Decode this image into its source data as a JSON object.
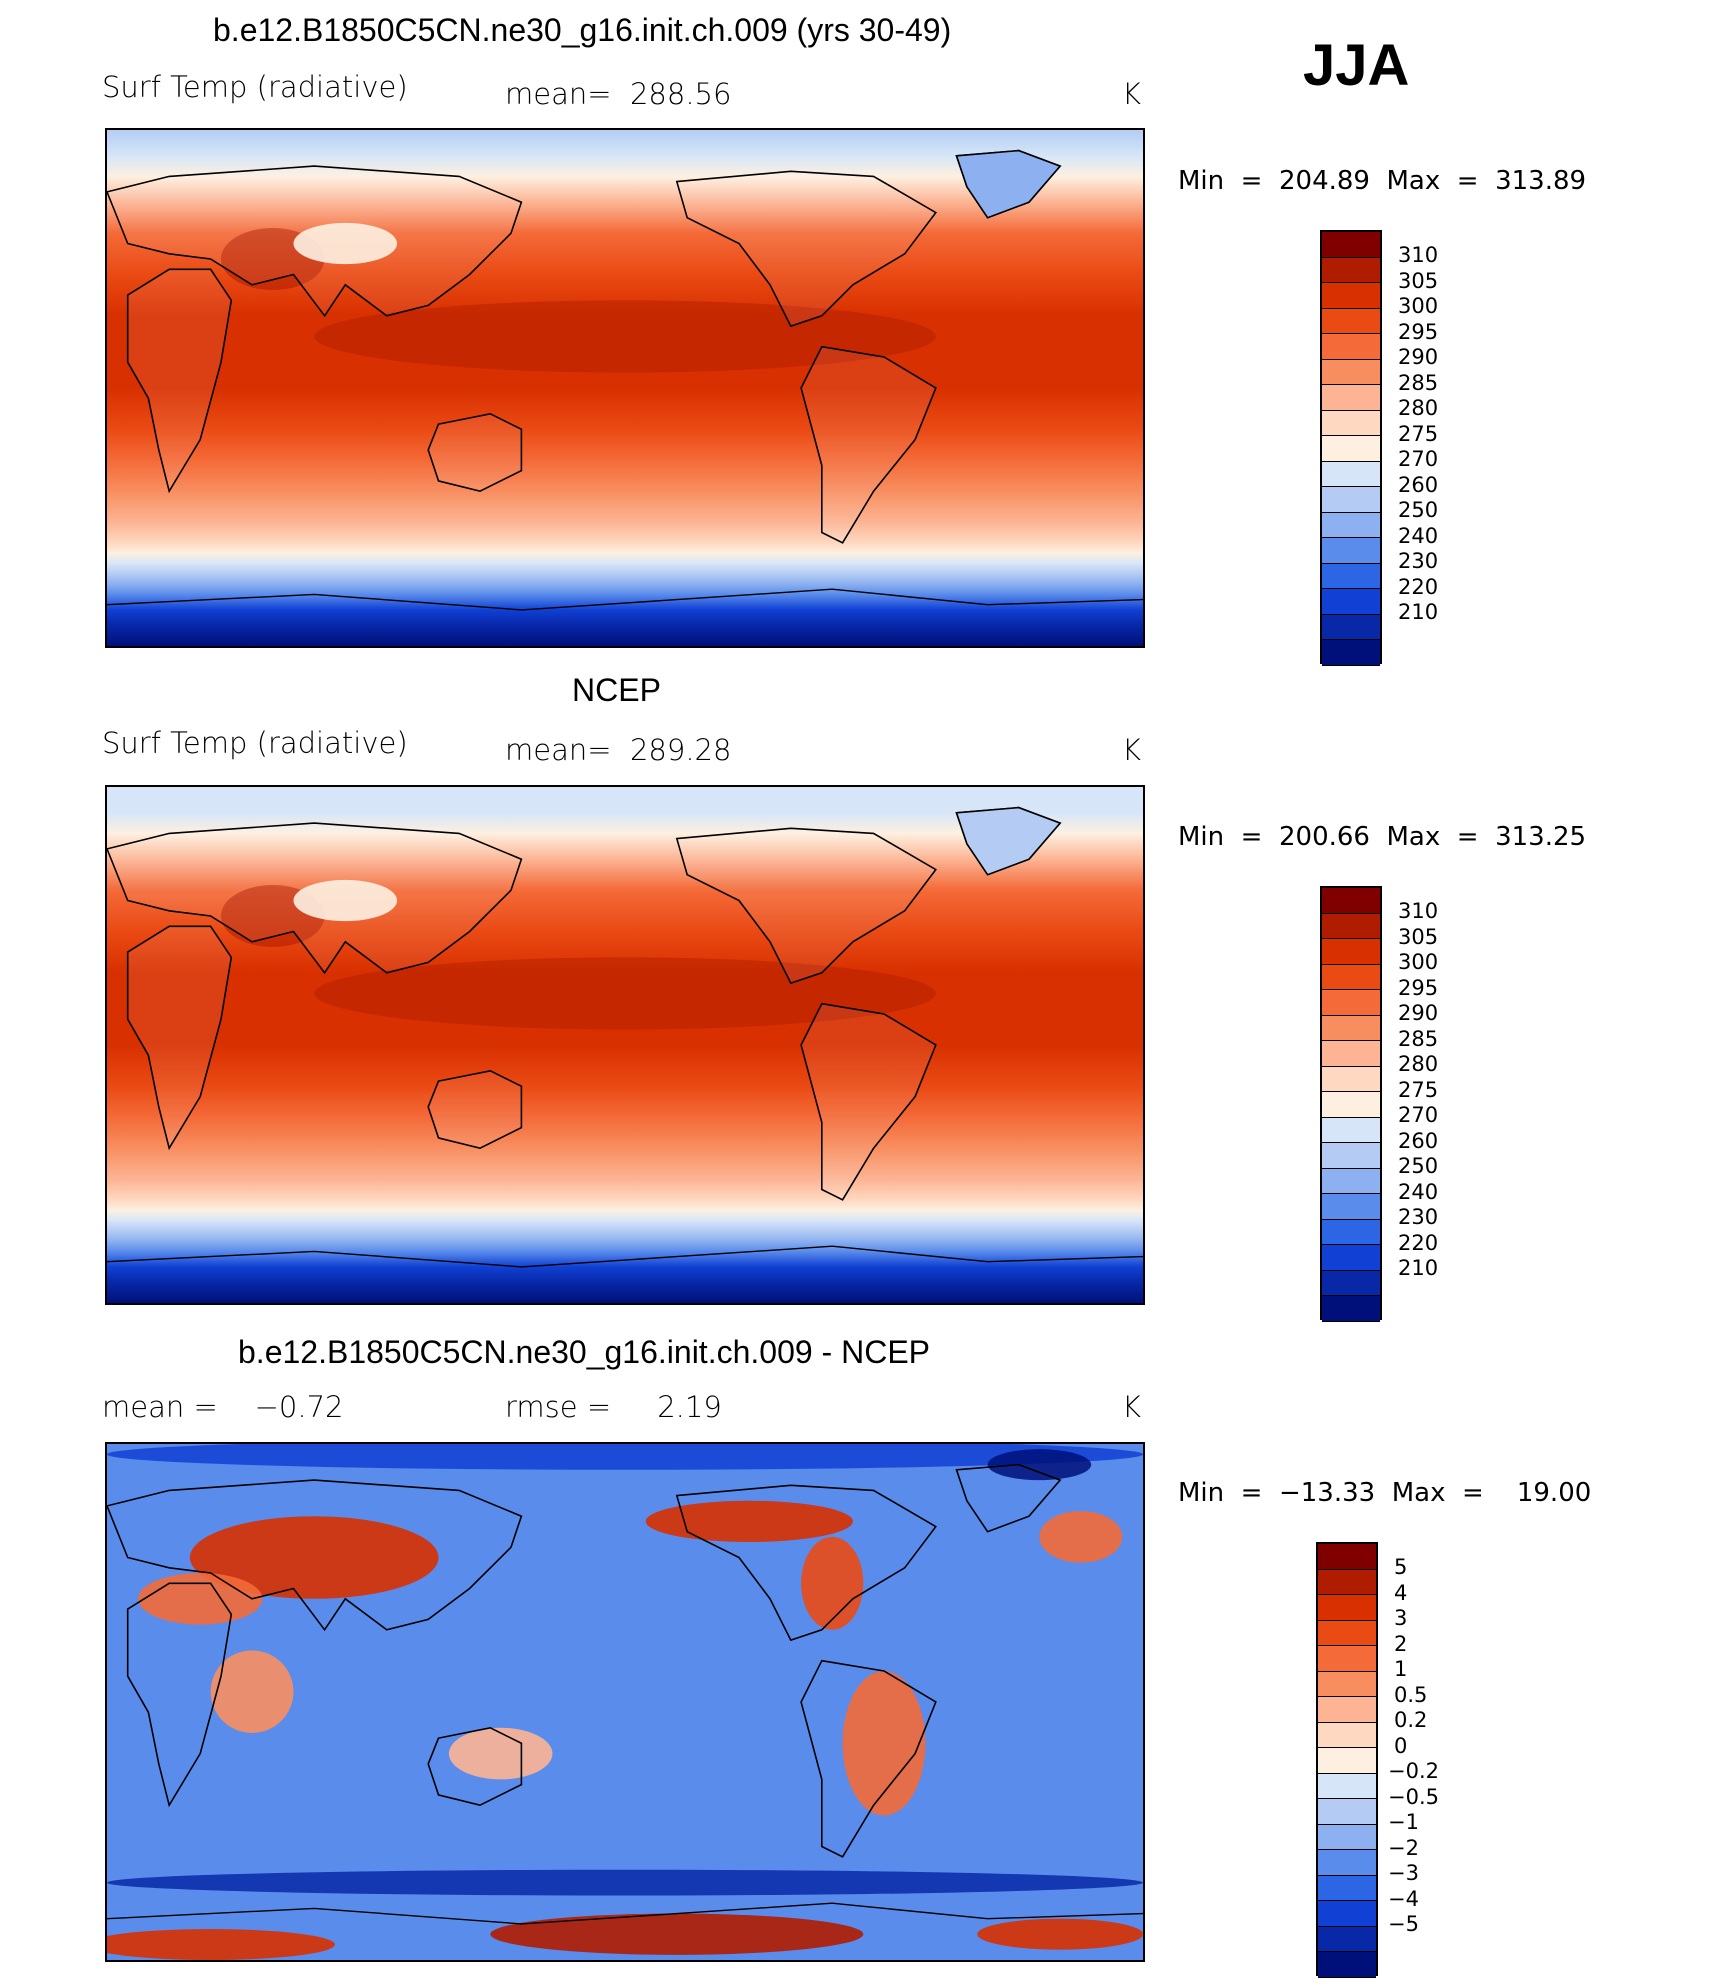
{
  "season": "JJA",
  "panels": [
    {
      "title": "b.e12.B1850C5CN.ne30_g16.init.ch.009 (yrs 30-49)",
      "left_label": "Surf Temp (radiative)",
      "mid_label": "mean=  288.56",
      "units": "K",
      "minmax": "Min  =  204.89  Max  =  313.89",
      "kind": "abs"
    },
    {
      "title": "NCEP",
      "left_label": "Surf Temp (radiative)",
      "mid_label": "mean=  289.28",
      "units": "K",
      "minmax": "Min  =  200.66  Max  =  313.25",
      "kind": "abs2"
    },
    {
      "title": "b.e12.B1850C5CN.ne30_g16.init.ch.009 - NCEP",
      "left_label": "mean =    −0.72",
      "mid_label": "rmse =     2.19",
      "units": "K",
      "minmax": "Min  =  −13.33  Max  =    19.00",
      "kind": "diff"
    }
  ],
  "colorbars": {
    "abs": {
      "labels": [
        "310",
        "305",
        "300",
        "295",
        "290",
        "285",
        "280",
        "275",
        "270",
        "260",
        "250",
        "240",
        "230",
        "220",
        "210"
      ],
      "colors": [
        "#800000",
        "#b01c00",
        "#d83000",
        "#ea4a14",
        "#f46a38",
        "#f88e60",
        "#fcb494",
        "#fed8c0",
        "#fdf0e0",
        "#d6e6f8",
        "#b4ccf4",
        "#8cb0f0",
        "#5a8cec",
        "#2c66e4",
        "#1040d4",
        "#0828a8",
        "#00107a"
      ]
    },
    "diff": {
      "labels": [
        "5",
        "4",
        "3",
        "2",
        "1",
        "0.5",
        "0.2",
        "0",
        "−0.2",
        "−0.5",
        "−1",
        "−2",
        "−3",
        "−4",
        "−5"
      ],
      "colors": [
        "#800000",
        "#b01c00",
        "#d83000",
        "#ea4a14",
        "#f46a38",
        "#f88e60",
        "#fcb494",
        "#fed8c0",
        "#fdf0e0",
        "#d6e6f8",
        "#b4ccf4",
        "#8cb0f0",
        "#5a8cec",
        "#2c66e4",
        "#1040d4",
        "#0828a8",
        "#00107a"
      ]
    }
  }
}
